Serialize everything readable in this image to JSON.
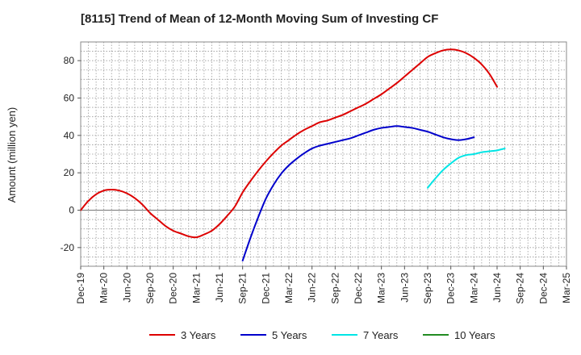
{
  "chart_data": {
    "type": "line",
    "title": "[8115]  Trend of Mean of 12-Month Moving Sum of Investing CF",
    "xlabel": "",
    "ylabel": "Amount (million yen)",
    "ylim": [
      -30,
      90
    ],
    "yticks": [
      -20,
      0,
      20,
      40,
      60,
      80
    ],
    "grid": true,
    "legend_position": "bottom",
    "x_labels": [
      "Dec-19",
      "Mar-20",
      "Jun-20",
      "Sep-20",
      "Dec-20",
      "Mar-21",
      "Jun-21",
      "Sep-21",
      "Dec-21",
      "Mar-22",
      "Jun-22",
      "Sep-22",
      "Dec-22",
      "Mar-23",
      "Jun-23",
      "Sep-23",
      "Dec-23",
      "Mar-24",
      "Jun-24",
      "Sep-24",
      "Dec-24",
      "Mar-25"
    ],
    "series": [
      {
        "name": "3 Years",
        "color": "#dd0000",
        "start_index": 0,
        "values": [
          0,
          5,
          8.5,
          10.5,
          11,
          10.5,
          9,
          6.5,
          3,
          -1.5,
          -5,
          -8.5,
          -11,
          -12.5,
          -14,
          -14.5,
          -13,
          -11,
          -7.5,
          -3,
          2,
          9.5,
          15.5,
          21,
          26,
          30.5,
          34.5,
          37.5,
          40.5,
          43,
          45,
          47,
          48,
          49.5,
          51,
          53,
          55,
          57,
          59.5,
          62,
          65,
          68,
          71.5,
          75,
          78.5,
          82,
          84,
          85.5,
          86,
          85.5,
          84,
          81.5,
          78,
          73,
          66
        ]
      },
      {
        "name": "5 Years",
        "color": "#0000cc",
        "start_index": 21,
        "values": [
          -27,
          -15,
          -4,
          6,
          13.5,
          19.5,
          24,
          27.5,
          30.5,
          33,
          34.5,
          35.5,
          36.5,
          37.5,
          38.5,
          40,
          41.5,
          43,
          44,
          44.5,
          45,
          44.5,
          44,
          43,
          42,
          40.5,
          39,
          38,
          37.5,
          38,
          39
        ]
      },
      {
        "name": "7 Years",
        "color": "#00e5e5",
        "start_index": 45,
        "values": [
          12,
          17,
          21.5,
          25,
          28,
          29.5,
          30,
          31,
          31.5,
          32,
          33
        ]
      },
      {
        "name": "10 Years",
        "color": "#228b22",
        "start_index": 0,
        "values": []
      }
    ]
  }
}
